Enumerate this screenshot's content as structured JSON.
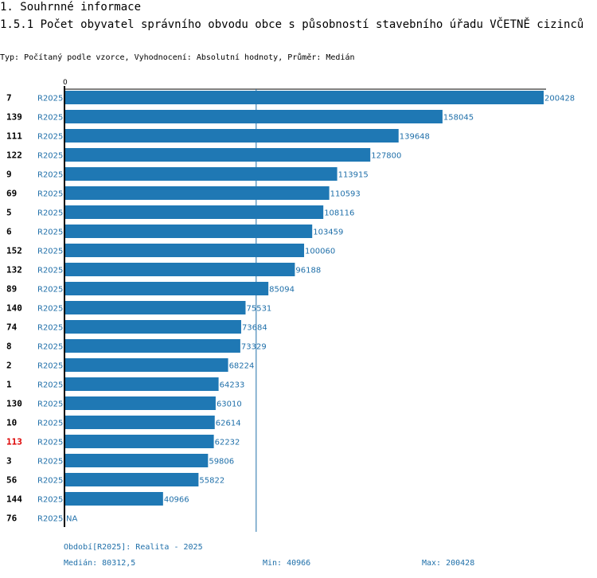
{
  "section_title": "1. Souhrnné informace",
  "chart_title": "1.5.1 Počet obyvatel správního obvodu obce s působností stavebního úřadu VČETNĚ cizinců",
  "subtitle": "Typ: Počítaný podle vzorce, Vyhodnocení: Absolutní hodnoty, Průměr: Medián",
  "colors": {
    "bar": "#1f78b4",
    "text_blue": "#1f6fa9",
    "highlight": "#dd0000"
  },
  "footer": {
    "period": "Období[R2025]: Realita - 2025",
    "median": "Medián: 80312,5",
    "min": "Min: 40966",
    "max": "Max: 200428"
  },
  "chart_data": {
    "type": "bar",
    "orientation": "horizontal",
    "title": "1.5.1 Počet obyvatel správního obvodu obce s působností stavebního úřadu VČETNĚ cizinců",
    "axis_zero_label": "0",
    "xlim": [
      0,
      200428
    ],
    "median": 80312.5,
    "categories": [
      "7",
      "139",
      "111",
      "122",
      "9",
      "69",
      "5",
      "6",
      "152",
      "132",
      "89",
      "140",
      "74",
      "8",
      "2",
      "1",
      "130",
      "10",
      "113",
      "3",
      "56",
      "144",
      "76"
    ],
    "period_labels": [
      "R2025",
      "R2025",
      "R2025",
      "R2025",
      "R2025",
      "R2025",
      "R2025",
      "R2025",
      "R2025",
      "R2025",
      "R2025",
      "R2025",
      "R2025",
      "R2025",
      "R2025",
      "R2025",
      "R2025",
      "R2025",
      "R2025",
      "R2025",
      "R2025",
      "R2025",
      "R2025"
    ],
    "values": [
      200428,
      158045,
      139648,
      127800,
      113915,
      110593,
      108116,
      103459,
      100060,
      96188,
      85094,
      75531,
      73684,
      73329,
      68224,
      64233,
      63010,
      62614,
      62232,
      59806,
      55822,
      40966,
      null
    ],
    "value_labels": [
      "200428",
      "158045",
      "139648",
      "127800",
      "113915",
      "110593",
      "108116",
      "103459",
      "100060",
      "96188",
      "85094",
      "75531",
      "73684",
      "73329",
      "68224",
      "64233",
      "63010",
      "62614",
      "62232",
      "59806",
      "55822",
      "40966",
      "NA"
    ],
    "highlighted_category": "113"
  }
}
